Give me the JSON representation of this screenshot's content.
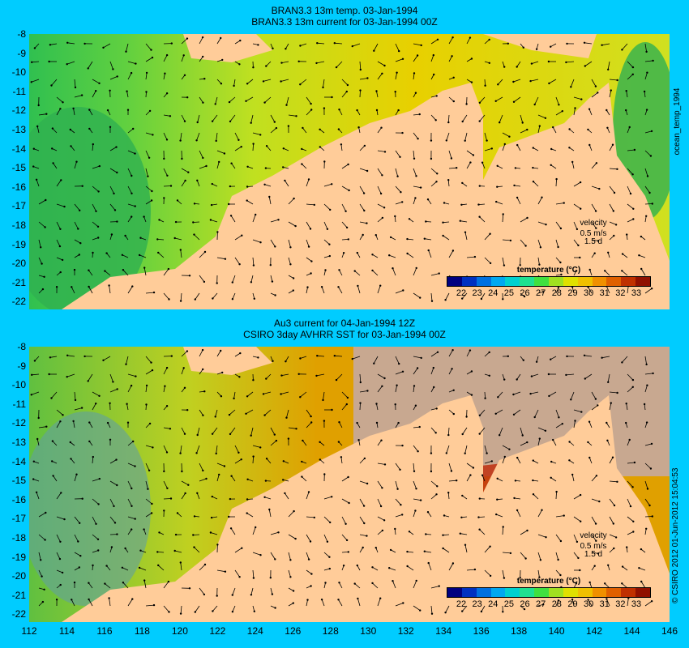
{
  "top_panel": {
    "title_line1": "BRAN3.3 13m temp. 03-Jan-1994",
    "title_line2": "BRAN3.3 13m current for 03-Jan-1994 00Z",
    "side_label": "ocean_temp_1994",
    "velocity_label": "velocity",
    "velocity_speed": "0.5 m/s",
    "velocity_time": "1.5 d"
  },
  "bottom_panel": {
    "title_line1": "Au3 current for 04-Jan-1994 12Z",
    "title_line2": "CSIRO 3day AVHRR SST for 03-Jan-1994 00Z",
    "side_label": "© CSIRO 2012  01-Jun-2012 15:04:53",
    "velocity_label": "velocity",
    "velocity_speed": "0.5 m/s",
    "velocity_time": "1.5 d"
  },
  "legend": {
    "title": "temperature (°C)",
    "ticks": [
      "22",
      "23",
      "24",
      "25",
      "26",
      "27",
      "28",
      "29",
      "30",
      "31",
      "32",
      "33"
    ],
    "colors": [
      "#000080",
      "#0030c0",
      "#0070e0",
      "#00a8f0",
      "#00d0d0",
      "#20e090",
      "#40e040",
      "#a0e020",
      "#e0e000",
      "#f0c000",
      "#f09000",
      "#e06000",
      "#c03000",
      "#901000"
    ]
  },
  "y_axis": [
    "-8",
    "-9",
    "-10",
    "-11",
    "-12",
    "-13",
    "-14",
    "-15",
    "-16",
    "-17",
    "-18",
    "-19",
    "-20",
    "-21",
    "-22"
  ],
  "x_axis": [
    "112",
    "114",
    "116",
    "118",
    "120",
    "122",
    "124",
    "126",
    "128",
    "130",
    "132",
    "134",
    "136",
    "138",
    "140",
    "142",
    "144",
    "146"
  ],
  "colors": {
    "background": "#00ccff",
    "land": "#ffcc99",
    "missing": "#c8a890",
    "sea_warm": "#e0c000",
    "sea_green": "#40d040",
    "sea_hot": "#c04010"
  }
}
